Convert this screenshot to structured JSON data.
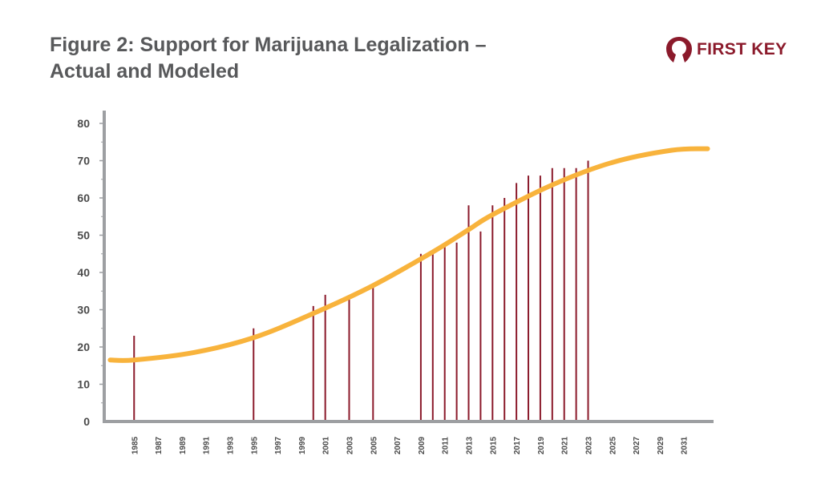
{
  "title_lines": [
    "Figure 2: Support for Marijuana Legalization –",
    "Actual and Modeled"
  ],
  "brand": {
    "name": "FIRST KEY",
    "color": "#8b1a2b"
  },
  "colors": {
    "bars": "#8b1a2b",
    "model": "#f8b33c",
    "axis": "#9d9fa2",
    "title": "#58595b"
  },
  "chart_data": {
    "type": "bar",
    "title": "Figure 2: Support for Marijuana Legalization – Actual and Modeled",
    "xlabel": "",
    "ylabel": "",
    "xlim": [
      1982.5,
      2033.5
    ],
    "ylim": [
      0,
      80
    ],
    "y_ticks": [
      0,
      10,
      20,
      30,
      40,
      50,
      60,
      70,
      80
    ],
    "x_ticks": [
      1985,
      1987,
      1989,
      1991,
      1993,
      1995,
      1997,
      1999,
      2001,
      2003,
      2005,
      2007,
      2009,
      2011,
      2013,
      2015,
      2017,
      2019,
      2021,
      2023,
      2025,
      2027,
      2029,
      2031
    ],
    "series": [
      {
        "kind": "bars",
        "x": [
          1985,
          1995,
          2000,
          2001,
          2003,
          2005,
          2009,
          2010,
          2011,
          2012,
          2013,
          2014,
          2015,
          2016,
          2017,
          2018,
          2019,
          2020,
          2021,
          2022,
          2023
        ],
        "values": [
          23,
          25,
          31,
          34,
          33,
          37,
          45,
          46,
          48,
          48,
          58,
          51,
          58,
          60,
          64,
          66,
          66,
          68,
          68,
          68,
          70
        ]
      },
      {
        "kind": "line",
        "x": [
          1983,
          1985,
          1990,
          1995,
          2000,
          2005,
          2010,
          2013,
          2015,
          2020,
          2025,
          2030,
          2033
        ],
        "values": [
          16.5,
          16.5,
          18.5,
          22.5,
          29,
          36.5,
          45.5,
          51.5,
          55.5,
          63.5,
          69.5,
          72.8,
          73.2
        ]
      }
    ],
    "grid": false,
    "legend": "none"
  }
}
